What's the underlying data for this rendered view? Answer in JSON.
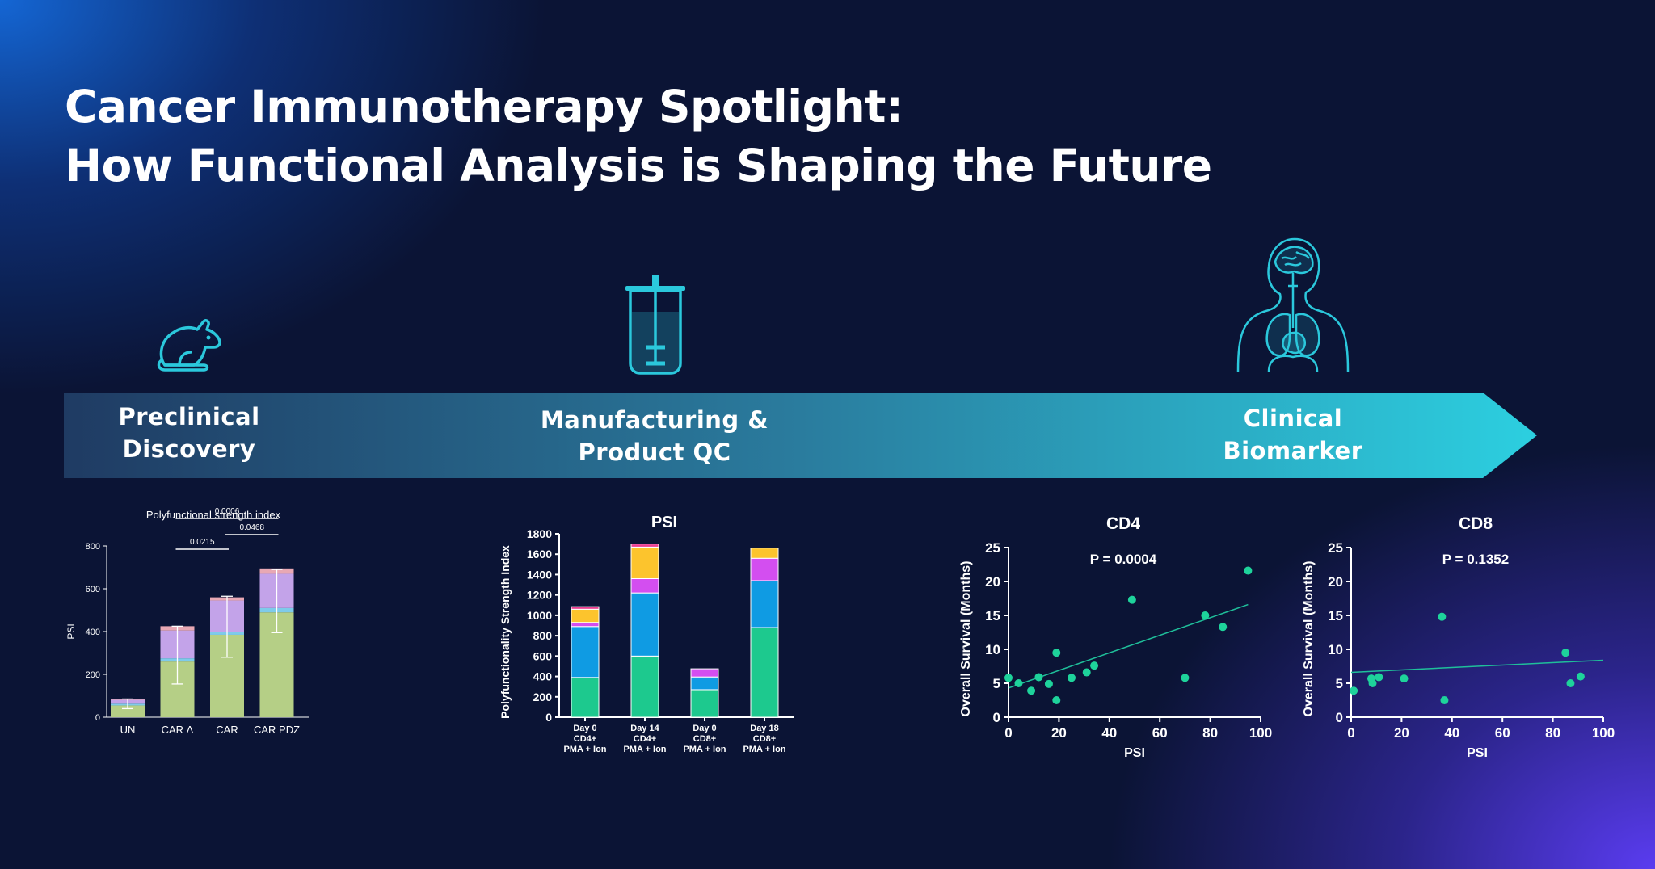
{
  "header": {
    "title_line1": "Cancer Immunotherapy Spotlight:",
    "title_line2": "How Functional Analysis is Shaping the Future"
  },
  "icons": [
    "mouse-icon",
    "bioreactor-icon",
    "human-anatomy-icon"
  ],
  "stages": {
    "preclinical_line1": "Preclinical",
    "preclinical_line2": "Discovery",
    "manufacturing_line1": "Manufacturing &",
    "manufacturing_line2": "Product QC",
    "clinical_line1": "Clinical",
    "clinical_line2": "Biomarker"
  },
  "colors": {
    "banner_start": "#1f3b63",
    "banner_end": "#2ccfe0",
    "icon_stroke": "#2bc8dc"
  },
  "chart_data": [
    {
      "type": "bar",
      "stacked": true,
      "title": "Polyfunctional strength index",
      "ylabel": "PSI",
      "xlabel": "",
      "ylim": [
        0,
        800
      ],
      "yticks": [
        "0",
        "200",
        "400",
        "600",
        "800"
      ],
      "categories": [
        "UN",
        "CAR Δ",
        "CAR",
        "CAR PDZ"
      ],
      "series": [
        {
          "color": "#b5cf86",
          "values": [
            55,
            260,
            385,
            490
          ]
        },
        {
          "color": "#7ecbea",
          "values": [
            8,
            15,
            15,
            20
          ]
        },
        {
          "color": "#c3a3e9",
          "values": [
            18,
            130,
            145,
            160
          ]
        },
        {
          "color": "#e8a8b4",
          "values": [
            4,
            20,
            15,
            25
          ]
        }
      ],
      "error_low": [
        40,
        155,
        280,
        395
      ],
      "error_high": [
        85,
        425,
        565,
        690
      ],
      "significance": [
        {
          "from": 1,
          "to": 2,
          "label": "0.0215"
        },
        {
          "from": 2,
          "to": 3,
          "label": "0.0468"
        },
        {
          "from": 1,
          "to": 3,
          "label": "0.0006"
        }
      ]
    },
    {
      "type": "bar",
      "stacked": true,
      "title": "PSI",
      "ylabel": "Polyfunctionality Strength Index",
      "xlabel": "",
      "ylim": [
        0,
        1800
      ],
      "yticks": [
        "0",
        "200",
        "400",
        "600",
        "800",
        "1000",
        "1200",
        "1400",
        "1600",
        "1800"
      ],
      "categories": [
        [
          "Day 0",
          "CD4+",
          "PMA + Ion"
        ],
        [
          "Day 14",
          "CD4+",
          "PMA + Ion"
        ],
        [
          "Day 0",
          "CD8+",
          "PMA + Ion"
        ],
        [
          "Day 18",
          "CD8+",
          "PMA + Ion"
        ]
      ],
      "series": [
        {
          "color": "#1dc98e",
          "values": [
            390,
            600,
            270,
            880
          ]
        },
        {
          "color": "#0f9be3",
          "values": [
            500,
            620,
            125,
            460
          ]
        },
        {
          "color": "#d34ef0",
          "values": [
            40,
            140,
            80,
            220
          ]
        },
        {
          "color": "#fcc42d",
          "values": [
            130,
            310,
            0,
            100
          ]
        },
        {
          "color": "#ec3f92",
          "values": [
            25,
            30,
            0,
            0
          ]
        }
      ]
    },
    {
      "type": "scatter",
      "title": "CD4",
      "annotation": "P = 0.0004",
      "xlabel": "PSI",
      "ylabel": "Overall Survival (Months)",
      "xlim": [
        0,
        100
      ],
      "ylim": [
        0,
        25
      ],
      "xticks": [
        "0",
        "20",
        "40",
        "60",
        "80",
        "100"
      ],
      "yticks": [
        "0",
        "5",
        "10",
        "15",
        "20",
        "25"
      ],
      "points": [
        [
          0,
          5.8
        ],
        [
          4,
          5.0
        ],
        [
          9,
          3.9
        ],
        [
          12,
          5.9
        ],
        [
          16,
          4.9
        ],
        [
          19,
          9.5
        ],
        [
          19,
          2.5
        ],
        [
          25,
          5.8
        ],
        [
          31,
          6.6
        ],
        [
          34,
          7.6
        ],
        [
          49,
          17.3
        ],
        [
          70,
          5.8
        ],
        [
          78,
          15.0
        ],
        [
          85,
          13.3
        ],
        [
          95,
          21.6
        ]
      ],
      "fit": [
        [
          0,
          4.3
        ],
        [
          95,
          16.6
        ]
      ]
    },
    {
      "type": "scatter",
      "title": "CD8",
      "annotation": "P = 0.1352",
      "xlabel": "PSI",
      "ylabel": "Overall Survival (Months)",
      "xlim": [
        0,
        100
      ],
      "ylim": [
        0,
        25
      ],
      "xticks": [
        "0",
        "20",
        "40",
        "60",
        "80",
        "100"
      ],
      "yticks": [
        "0",
        "5",
        "10",
        "15",
        "20",
        "25"
      ],
      "points": [
        [
          1,
          3.9
        ],
        [
          8,
          5.7
        ],
        [
          8.5,
          5.0
        ],
        [
          11,
          5.9
        ],
        [
          21,
          5.7
        ],
        [
          36,
          14.8
        ],
        [
          37,
          2.5
        ],
        [
          85,
          9.5
        ],
        [
          87,
          5.0
        ],
        [
          91,
          6.0
        ]
      ],
      "fit": [
        [
          0,
          6.6
        ],
        [
          100,
          8.4
        ]
      ]
    }
  ]
}
